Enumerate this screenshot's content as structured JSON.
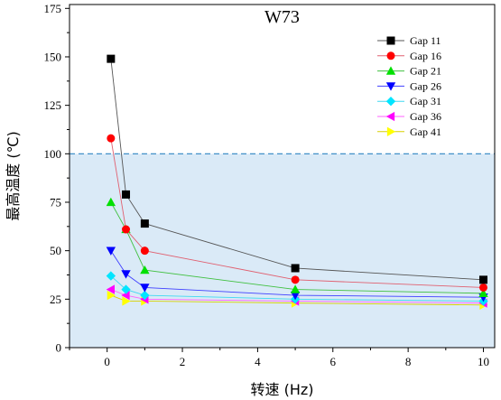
{
  "chart_data": {
    "type": "scatter",
    "title": "W73",
    "xlabel": "转速 (Hz)",
    "ylabel": "最高温度 (℃)",
    "xlim": [
      -1,
      10.3
    ],
    "ylim": [
      0,
      177
    ],
    "x_ticks": [
      0,
      2,
      4,
      6,
      8,
      10
    ],
    "y_ticks": [
      0,
      25,
      50,
      75,
      100,
      125,
      150,
      175
    ],
    "threshold": {
      "y": 100,
      "color": "#2e86c1",
      "style": "dashed",
      "fill_below": "#daeaf7"
    },
    "grid": false,
    "legend_position": "top-right",
    "series": [
      {
        "name": "Gap 11",
        "marker": "square",
        "color": "#000000",
        "line_color": "#555555",
        "x": [
          0.1,
          0.5,
          1,
          5,
          10
        ],
        "y": [
          149,
          79,
          64,
          41,
          35
        ]
      },
      {
        "name": "Gap 16",
        "marker": "circle",
        "color": "#ff0000",
        "line_color": "#e06070",
        "x": [
          0.1,
          0.5,
          1,
          5,
          10
        ],
        "y": [
          108,
          61,
          50,
          35,
          31
        ]
      },
      {
        "name": "Gap 21",
        "marker": "triangle-up",
        "color": "#00e000",
        "line_color": "#40c040",
        "x": [
          0.1,
          0.5,
          1,
          5,
          10
        ],
        "y": [
          75,
          61,
          40,
          30,
          28
        ]
      },
      {
        "name": "Gap 26",
        "marker": "triangle-down",
        "color": "#0000ff",
        "line_color": "#4040ff",
        "x": [
          0.1,
          0.5,
          1,
          5,
          10
        ],
        "y": [
          50,
          38,
          31,
          27,
          26
        ]
      },
      {
        "name": "Gap 31",
        "marker": "diamond",
        "color": "#00e5ff",
        "line_color": "#40d8f0",
        "x": [
          0.1,
          0.5,
          1,
          5,
          10
        ],
        "y": [
          37,
          30,
          27,
          25,
          24
        ]
      },
      {
        "name": "Gap 36",
        "marker": "triangle-left",
        "color": "#ff00ff",
        "line_color": "#ff60ff",
        "x": [
          0.1,
          0.5,
          1,
          5,
          10
        ],
        "y": [
          30,
          27,
          25,
          24,
          23
        ]
      },
      {
        "name": "Gap 41",
        "marker": "triangle-right",
        "color": "#ffff00",
        "line_color": "#d8d000",
        "x": [
          0.1,
          0.5,
          1,
          5,
          10
        ],
        "y": [
          27,
          24,
          24,
          23,
          22
        ]
      }
    ]
  }
}
